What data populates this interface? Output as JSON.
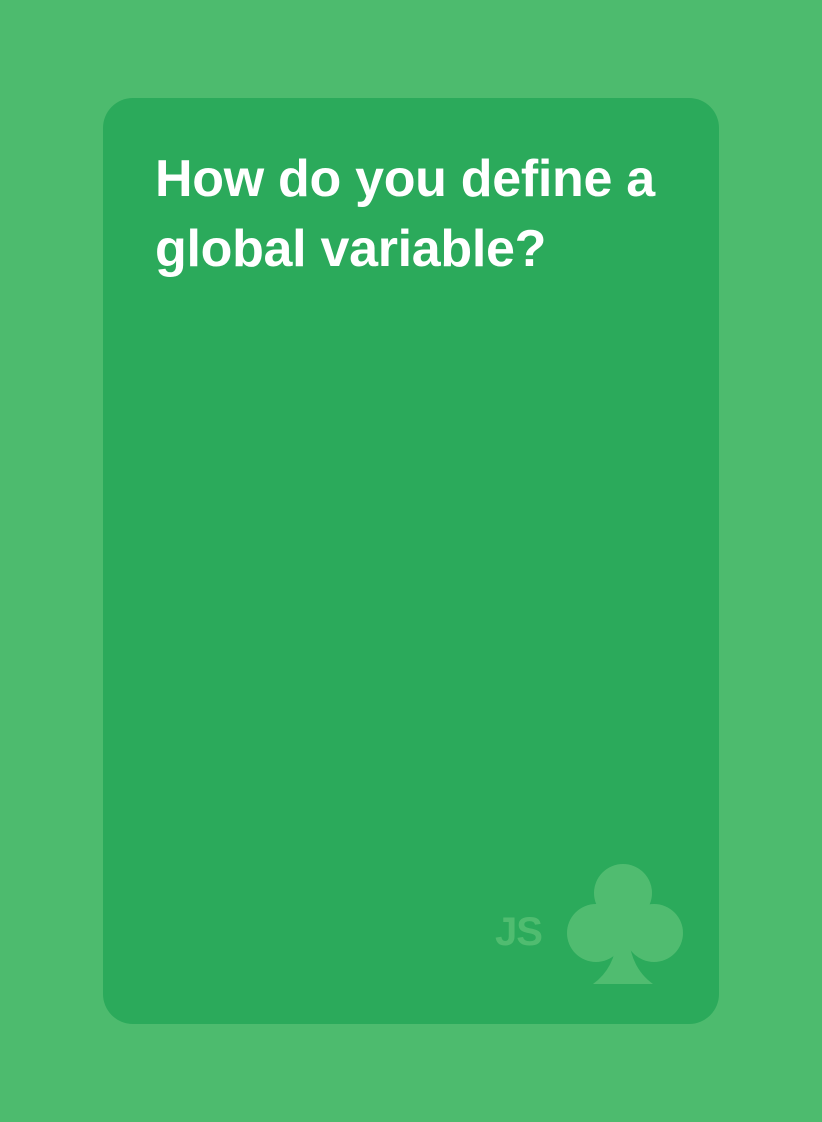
{
  "card": {
    "question": "How do you define a global variable?",
    "brand_label": "JS",
    "suit_icon": "club-icon",
    "colors": {
      "page_background": "#4dbb6e",
      "card_background": "#2baa5b",
      "question_text": "#ffffff",
      "brand_mark": "#50bc70"
    }
  }
}
